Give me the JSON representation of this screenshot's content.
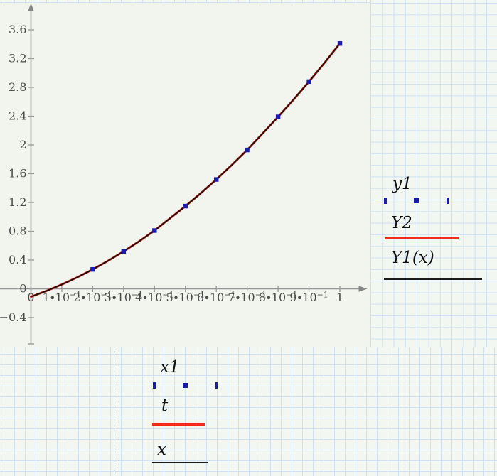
{
  "page": {
    "paper_color": "#f3f7f2",
    "grid_color": "#cfe1f3",
    "plot_background": "#f1f5ee",
    "axis_color": "#979797",
    "tick_label_color": "#4d4d4d",
    "page_break_color": "#9ba4a9"
  },
  "chart_data": {
    "type": "line",
    "title": "",
    "xlabel": "",
    "ylabel": "",
    "grid": "off",
    "x_axis": {
      "min": 0,
      "max": 1,
      "tick_step": 0.1,
      "tick_labels": [
        {
          "base": "0"
        },
        {
          "base": "1∙10",
          "exp": "−1"
        },
        {
          "base": "2∙10",
          "exp": "−1"
        },
        {
          "base": "3∙10",
          "exp": "−1"
        },
        {
          "base": "4∙10",
          "exp": "−1"
        },
        {
          "base": "5∙10",
          "exp": "−1"
        },
        {
          "base": "6∙10",
          "exp": "−1"
        },
        {
          "base": "7∙10",
          "exp": "−1"
        },
        {
          "base": "8∙10",
          "exp": "−1"
        },
        {
          "base": "9∙10",
          "exp": "−1"
        },
        {
          "base": "1"
        }
      ]
    },
    "y_axis": {
      "min": -0.4,
      "max": 3.6,
      "tick_step": 0.4,
      "tick_labels": [
        "−0.4",
        "0",
        "0.4",
        "0.8",
        "1.2",
        "1.6",
        "2",
        "2.4",
        "2.8",
        "3.2",
        "3.6"
      ]
    },
    "series": [
      {
        "name": "y1",
        "style": "points",
        "marker": "square",
        "color": "#1a1ab4",
        "x": [
          0.2,
          0.3,
          0.4,
          0.5,
          0.6,
          0.7,
          0.8,
          0.9,
          1.0
        ],
        "y": [
          0.27,
          0.52,
          0.81,
          1.15,
          1.52,
          1.93,
          2.39,
          2.88,
          3.41
        ]
      },
      {
        "name": "Y2",
        "style": "line",
        "color": "#e02818",
        "stroke_width": 3
      },
      {
        "name": "Y1(x)",
        "style": "line",
        "color": "#1a0a08",
        "stroke_width": 1.8
      }
    ],
    "curve": {
      "comment_visible": "",
      "x": [
        0,
        0.05,
        0.1,
        0.15,
        0.2,
        0.25,
        0.3,
        0.35,
        0.4,
        0.45,
        0.5,
        0.55,
        0.6,
        0.65,
        0.7,
        0.75,
        0.8,
        0.85,
        0.9,
        0.95,
        1.0
      ],
      "y": [
        -0.11,
        -0.03,
        0.06,
        0.16,
        0.27,
        0.39,
        0.52,
        0.66,
        0.81,
        0.98,
        1.15,
        1.33,
        1.52,
        1.72,
        1.93,
        2.16,
        2.39,
        2.63,
        2.88,
        3.14,
        3.41
      ]
    },
    "legend_position": "right-and-below"
  },
  "legends": {
    "right": [
      {
        "label": "y1",
        "swatch": "points",
        "color": "#1a1ab4"
      },
      {
        "label": "Y2",
        "swatch": "line",
        "color": "#f32b1b"
      },
      {
        "label": "Y1(x)",
        "swatch": "line",
        "color": "#1b1b1b"
      }
    ],
    "bottom": [
      {
        "label": "x1",
        "swatch": "points",
        "color": "#1a1ab4"
      },
      {
        "label": "t",
        "swatch": "line",
        "color": "#f32b1b"
      },
      {
        "label": "x",
        "swatch": "line",
        "color": "#1b1b1b"
      }
    ]
  }
}
